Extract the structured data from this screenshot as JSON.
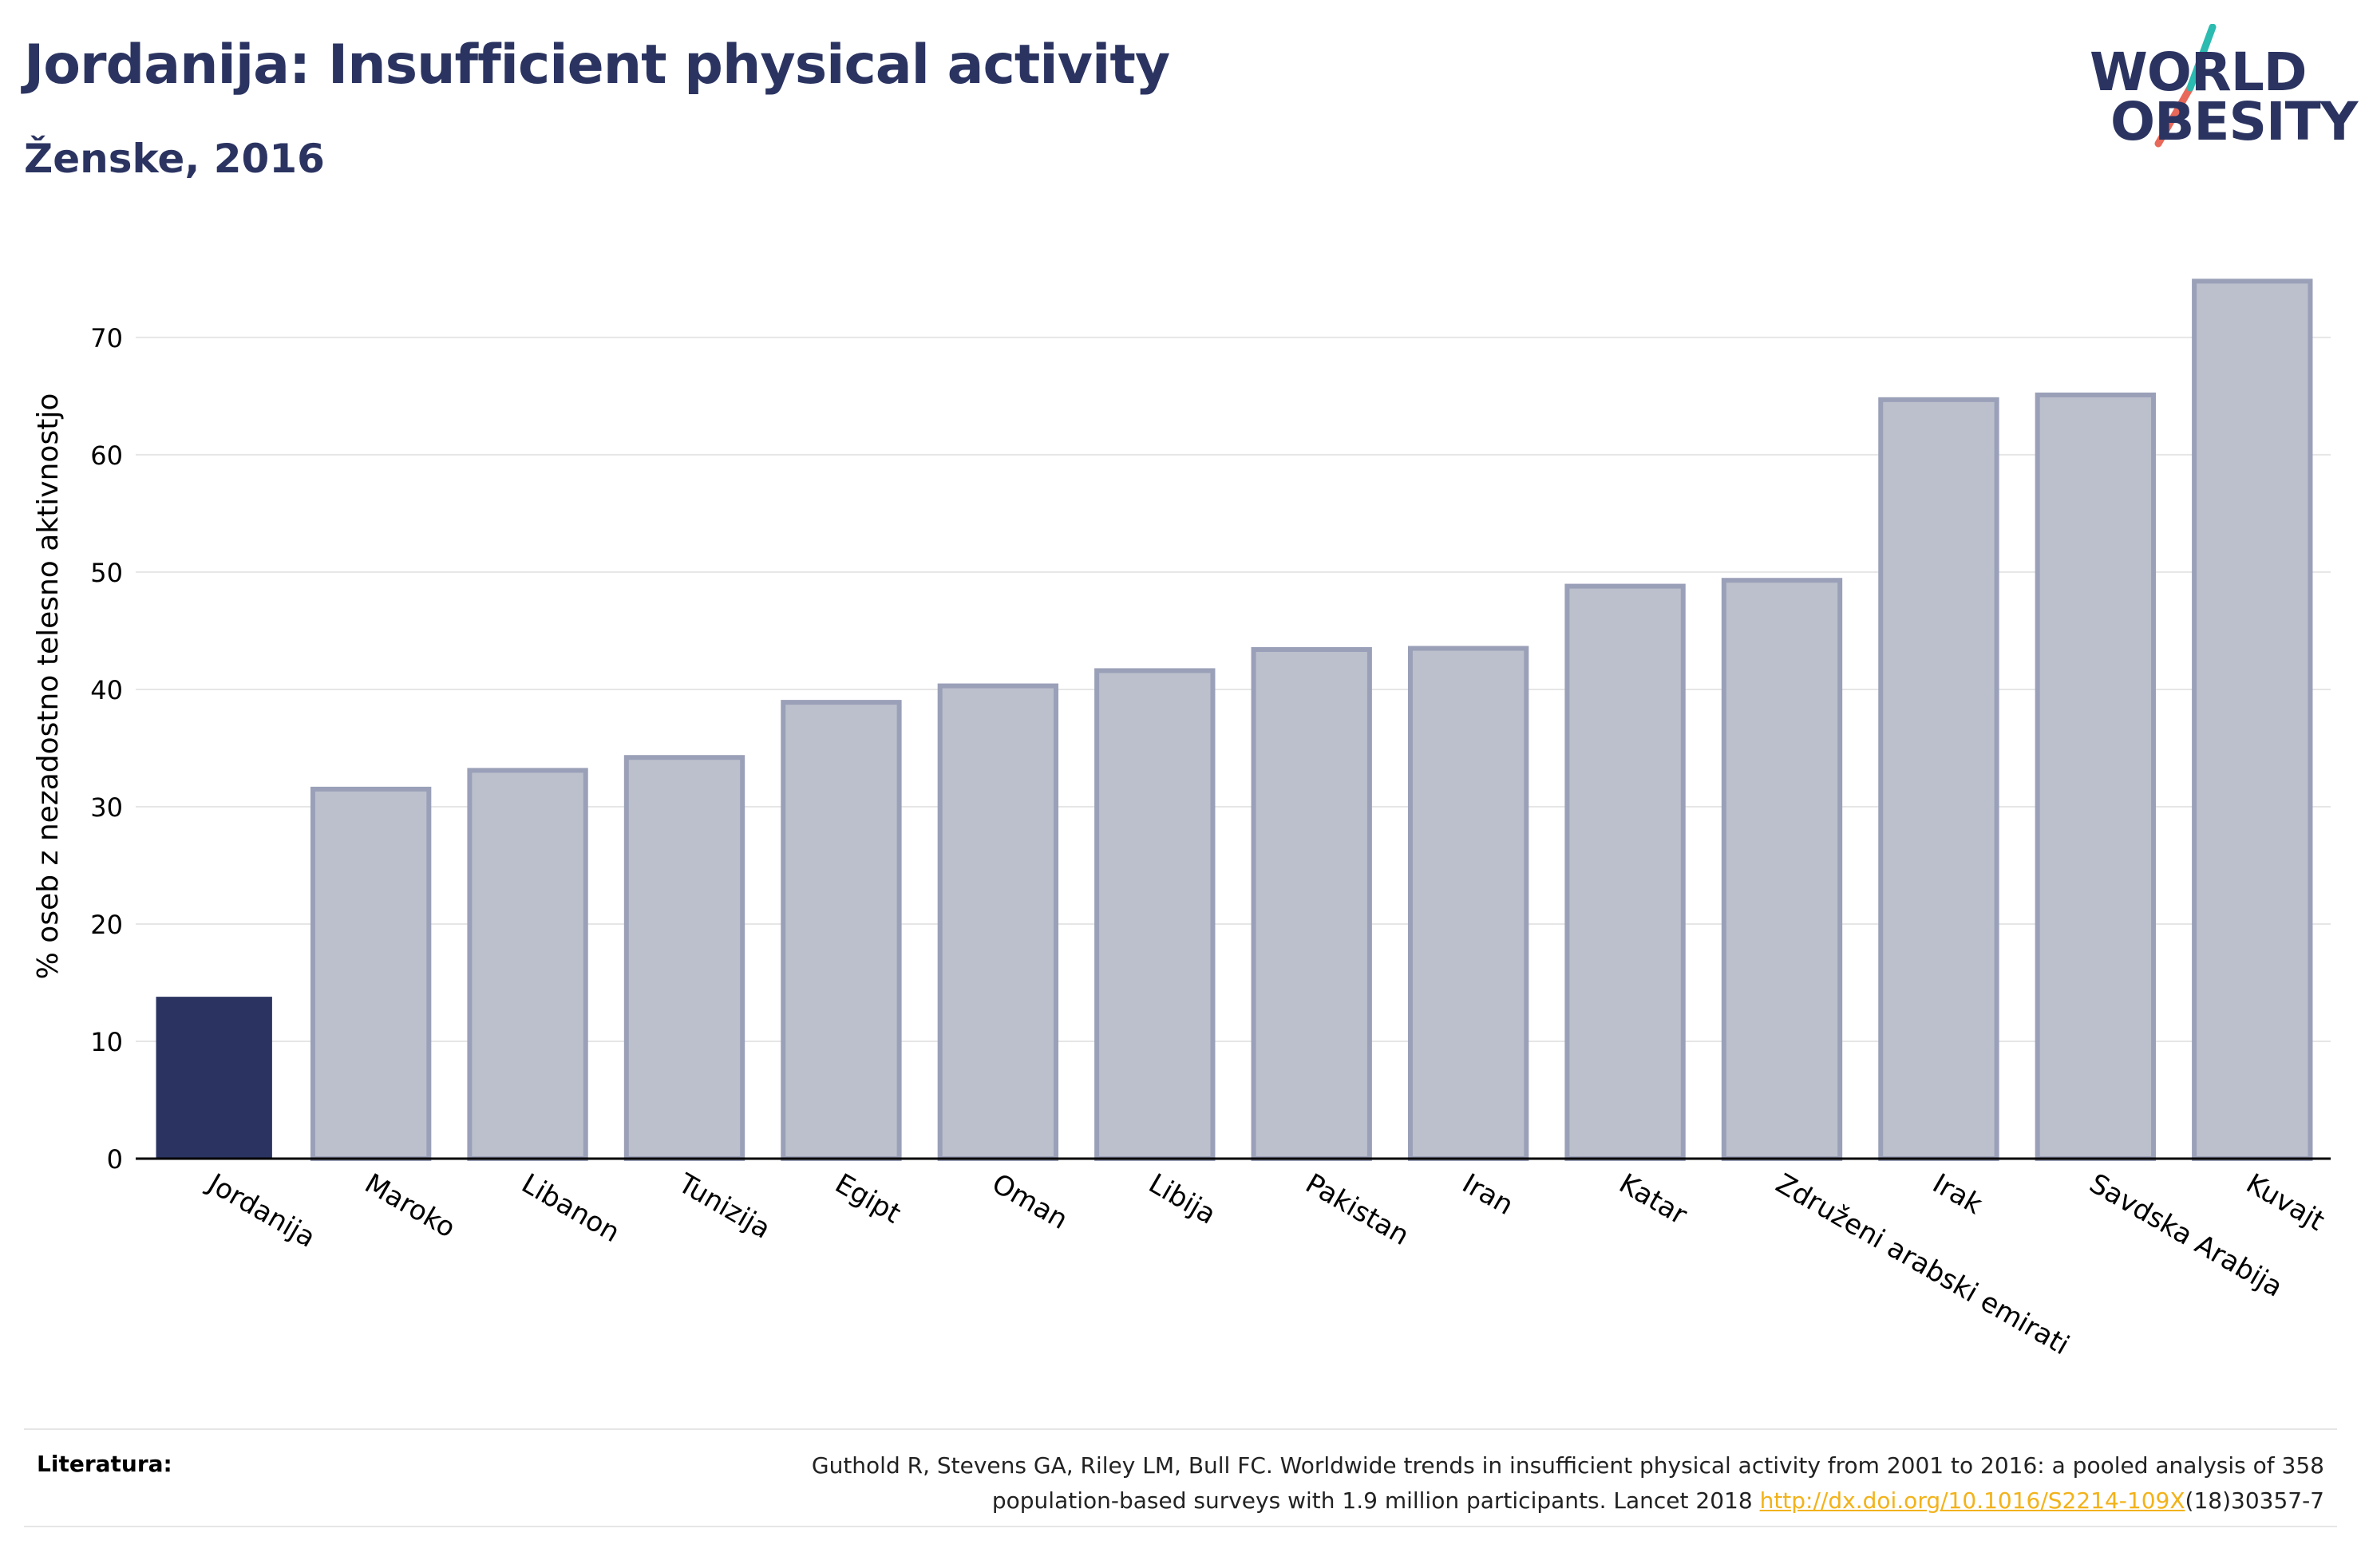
{
  "header": {
    "title": "Jordanija: Insufficient physical activity",
    "subtitle": "Ženske, 2016"
  },
  "logo": {
    "line1": "WORLD",
    "line2": "OBESITY",
    "colors": {
      "text": "#2b3461",
      "slash_top": "#2bbbb0",
      "slash_bottom": "#e8685a"
    }
  },
  "chart_data": {
    "type": "bar",
    "ylabel": "% oseb z nezadostno telesno aktivnostjo",
    "ylim": [
      0,
      77
    ],
    "yticks": [
      0,
      10,
      20,
      30,
      40,
      50,
      60,
      70
    ],
    "grid": true,
    "categories": [
      "Jordanija",
      "Maroko",
      "Libanon",
      "Tunizija",
      "Egipt",
      "Oman",
      "Libija",
      "Pakistan",
      "Iran",
      "Katar",
      "Združeni arabski emirati",
      "Irak",
      "Savdska Arabija",
      "Kuvajt"
    ],
    "values": [
      13.8,
      31.5,
      33.1,
      34.2,
      38.9,
      40.3,
      41.6,
      43.4,
      43.5,
      48.8,
      49.3,
      64.7,
      65.1,
      74.8
    ],
    "highlight_index": 0,
    "colors": {
      "highlight": "#2b3461",
      "bar_fill": "#bcc0cc",
      "bar_stroke": "#9aa0b8",
      "grid": "#e6e6e6",
      "axis": "#000000"
    }
  },
  "footer": {
    "label": "Literatura:",
    "citation_line1": "Guthold R, Stevens GA, Riley LM, Bull FC. Worldwide trends in insufficient physical activity from 2001 to 2016: a pooled analysis of 358",
    "citation_line2_before": "population-based surveys with 1.9 million participants. Lancet 2018 ",
    "citation_link": "http://dx.doi.org/10.1016/S2214-109X",
    "citation_line2_after": "(18)30357-7"
  }
}
